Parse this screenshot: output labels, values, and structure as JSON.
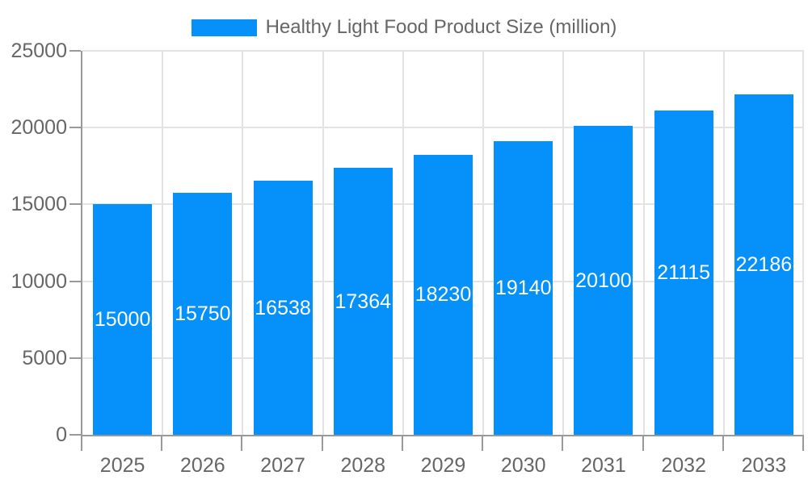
{
  "chart_data": {
    "type": "bar",
    "title": "",
    "legend": {
      "label": "Healthy Light Food Product Size (million)",
      "position": "top-center"
    },
    "categories": [
      "2025",
      "2026",
      "2027",
      "2028",
      "2029",
      "2030",
      "2031",
      "2032",
      "2033"
    ],
    "series": [
      {
        "name": "Healthy Light Food Product Size (million)",
        "values": [
          15000,
          15750,
          16538,
          17364,
          18230,
          19140,
          20100,
          21115,
          22186
        ],
        "color": "#0590fa"
      }
    ],
    "xlabel": "",
    "ylabel": "",
    "ylim": [
      0,
      25000
    ],
    "yticks": [
      0,
      5000,
      10000,
      15000,
      20000,
      25000
    ],
    "grid": {
      "horizontal": true,
      "vertical_at_category_boundaries": true,
      "ticks_outside_axes": true
    },
    "value_labels": {
      "position": "inside-center",
      "color": "#ffffff"
    }
  },
  "colors": {
    "bar": "#0590fa",
    "grid_line": "#e3e3e3",
    "axis_line": "#999999",
    "tick_mark": "#999999",
    "tick_label": "#666666",
    "legend_label": "#666666",
    "value_label": "#ffffff",
    "background": "#ffffff"
  }
}
